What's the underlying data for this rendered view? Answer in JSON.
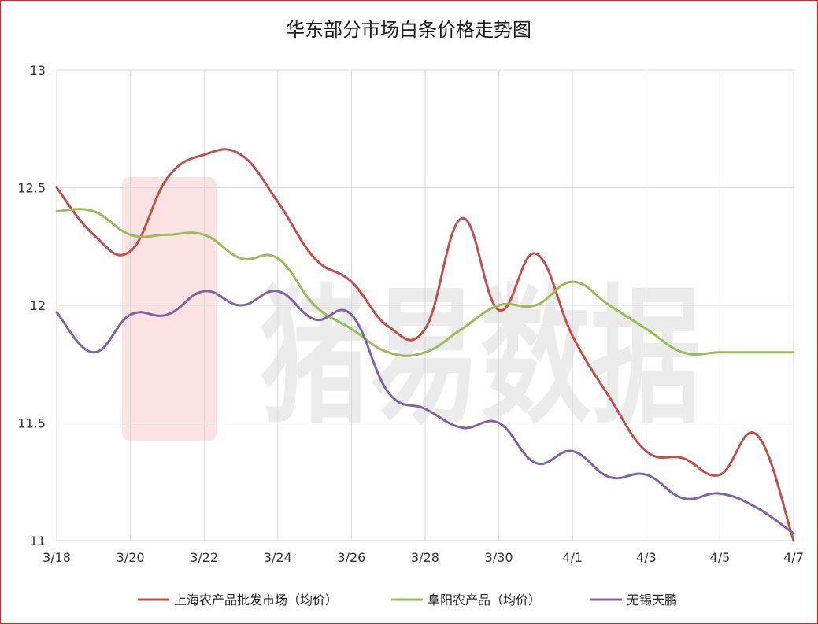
{
  "chart_data": {
    "type": "line",
    "title": "华东部分市场白条价格走势图",
    "x": [
      "3/18",
      "3/19",
      "3/20",
      "3/21",
      "3/22",
      "3/23",
      "3/24",
      "3/25",
      "3/26",
      "3/27",
      "3/28",
      "3/29",
      "3/30",
      "3/31",
      "4/1",
      "4/2",
      "4/3",
      "4/4",
      "4/5",
      "4/6",
      "4/7"
    ],
    "x_tick_labels": [
      "3/18",
      "3/20",
      "3/22",
      "3/24",
      "3/26",
      "3/28",
      "3/30",
      "4/1",
      "4/3",
      "4/5",
      "4/7"
    ],
    "ylim": [
      11,
      13
    ],
    "y_ticks": [
      "11",
      "11.5",
      "12",
      "12.5",
      "13"
    ],
    "grid": true,
    "legend_position": "bottom",
    "series": [
      {
        "name": "上海农产品批发市场（均价）",
        "color": "#c0504d",
        "values": [
          12.5,
          12.3,
          12.23,
          12.54,
          12.64,
          12.64,
          12.44,
          12.2,
          12.1,
          11.91,
          11.9,
          12.37,
          11.98,
          12.22,
          11.87,
          11.61,
          11.38,
          11.35,
          11.28,
          11.45,
          11.0
        ]
      },
      {
        "name": "阜阳农产品（均价）",
        "color": "#9bbb59",
        "values": [
          12.4,
          12.4,
          12.3,
          12.3,
          12.3,
          12.2,
          12.2,
          12.0,
          11.9,
          11.8,
          11.8,
          11.9,
          12.0,
          12.0,
          12.1,
          12.0,
          11.9,
          11.8,
          11.8,
          11.8,
          11.8
        ]
      },
      {
        "name": "无锡天鹏",
        "color": "#8064a2",
        "values": [
          11.97,
          11.8,
          11.96,
          11.96,
          12.06,
          12.0,
          12.06,
          11.94,
          11.96,
          11.63,
          11.56,
          11.48,
          11.5,
          11.33,
          11.38,
          11.27,
          11.28,
          11.18,
          11.2,
          11.14,
          11.03
        ]
      }
    ]
  },
  "watermark": {
    "text": "猪易数据",
    "color": "#e8211f"
  }
}
